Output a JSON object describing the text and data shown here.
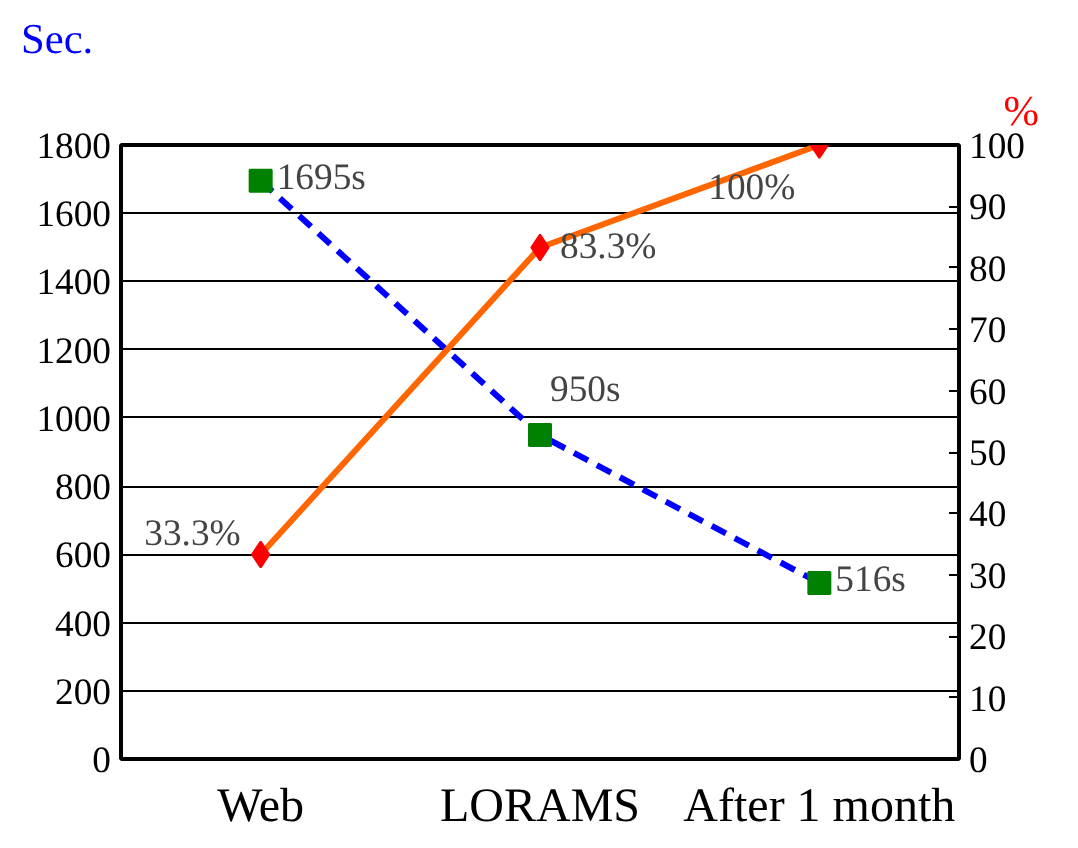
{
  "chart_data": {
    "type": "line",
    "categories": [
      "Web",
      "LORAMS",
      "After 1 month"
    ],
    "ylabel": "Sec.",
    "y2label": "%",
    "ylim": [
      0,
      1800
    ],
    "yticks": [
      0,
      200,
      400,
      600,
      800,
      1000,
      1200,
      1400,
      1600,
      1800
    ],
    "y2lim": [
      0,
      100
    ],
    "y2ticks": [
      0,
      10,
      20,
      30,
      40,
      50,
      60,
      70,
      80,
      90,
      100
    ],
    "grid": "y",
    "series": [
      {
        "color": "#0000ff",
        "colors": [
          "#008000",
          "#008000",
          "#008000"
        ],
        "marker": "square",
        "line_style": "dashed",
        "values": [
          1695,
          950,
          516
        ],
        "value_labels": [
          "1695s",
          "950s",
          "516s"
        ]
      },
      {
        "color": "#ff6600",
        "colors": [
          "#ff0000",
          "#ff0000",
          "#ff0000"
        ],
        "marker": "diamond",
        "line_style": "solid",
        "axis": "y2",
        "values": [
          33.3,
          83.3,
          100
        ],
        "value_labels": [
          "33.3%",
          "83.3%",
          "100%"
        ]
      }
    ]
  }
}
